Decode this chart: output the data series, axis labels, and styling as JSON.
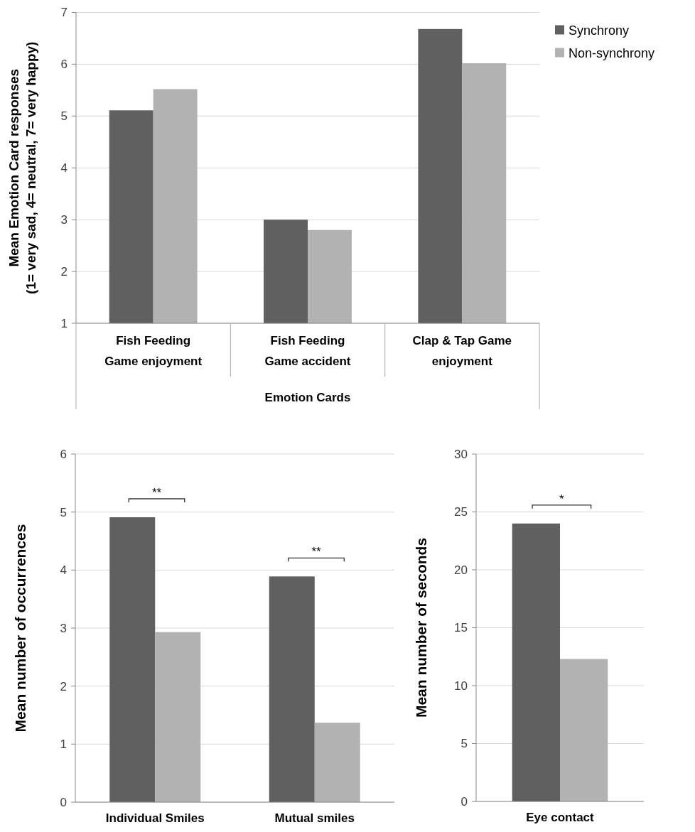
{
  "chart_data": [
    {
      "type": "bar",
      "xlabel": "Emotion Cards",
      "ylabel": "Mean Emotion Card responses\n(1= very sad, 4= neutral, 7= very happy)",
      "categories": [
        "Fish Feeding Game enjoyment",
        "Fish Feeding Game accident",
        "Clap & Tap Game enjoyment"
      ],
      "series": [
        {
          "name": "Synchrony",
          "color": "#606060",
          "values": [
            5.11,
            3.0,
            6.68
          ]
        },
        {
          "name": "Non-synchrony",
          "color": "#b2b2b2",
          "values": [
            5.52,
            2.8,
            6.02
          ]
        }
      ],
      "ylim": [
        1,
        7
      ],
      "yticks": [
        1,
        2,
        3,
        4,
        5,
        6,
        7
      ],
      "grid": "y",
      "legend": "top right"
    },
    {
      "type": "bar",
      "ylabel": "Mean number of occurrences",
      "categories": [
        "Individual Smiles",
        "Mutual smiles"
      ],
      "series": [
        {
          "color": "#606060",
          "values": [
            4.91,
            3.89
          ]
        },
        {
          "color": "#b2b2b2",
          "values": [
            2.93,
            1.37
          ]
        }
      ],
      "ylim": [
        0,
        6
      ],
      "yticks": [
        0,
        1,
        2,
        3,
        4,
        5,
        6
      ],
      "grid": "y",
      "annotations": [
        "**",
        "**"
      ]
    },
    {
      "type": "bar",
      "ylabel": "Mean number of seconds",
      "categories": [
        "Eye contact"
      ],
      "series": [
        {
          "color": "#606060",
          "values": [
            24.0
          ]
        },
        {
          "color": "#b2b2b2",
          "values": [
            12.3
          ]
        }
      ],
      "ylim": [
        0,
        30
      ],
      "yticks": [
        0,
        5,
        10,
        15,
        20,
        25,
        30
      ],
      "grid": "y",
      "annotations": [
        "*"
      ]
    }
  ]
}
